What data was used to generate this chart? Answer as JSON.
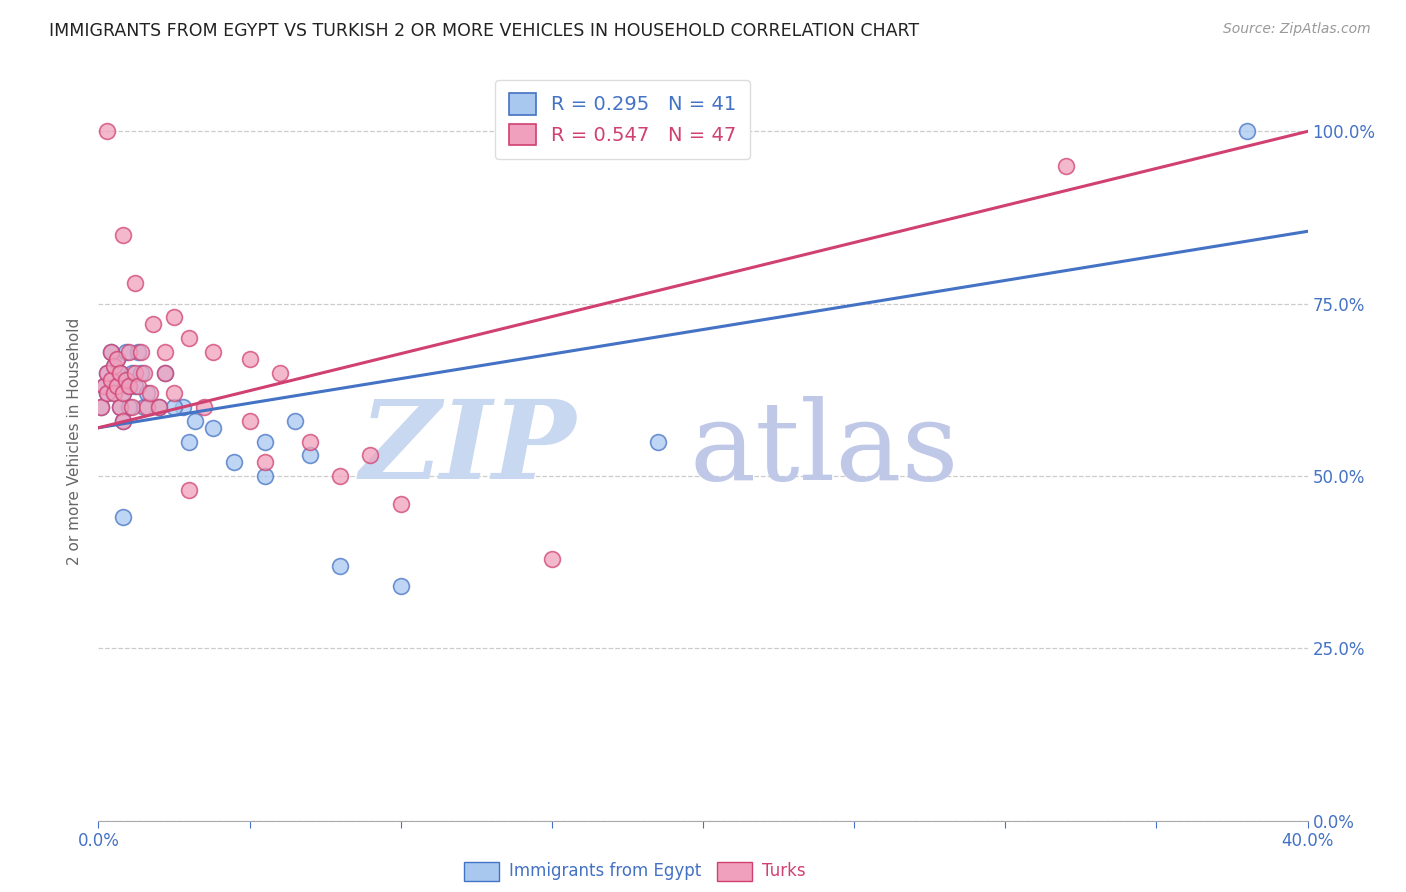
{
  "title": "IMMIGRANTS FROM EGYPT VS TURKISH 2 OR MORE VEHICLES IN HOUSEHOLD CORRELATION CHART",
  "source": "Source: ZipAtlas.com",
  "ylabel": "2 or more Vehicles in Household",
  "legend_label_blue": "Immigrants from Egypt",
  "legend_label_pink": "Turks",
  "R_blue": 0.295,
  "N_blue": 41,
  "R_pink": 0.547,
  "N_pink": 47,
  "x_min": 0.0,
  "x_max": 0.4,
  "y_min": 0.0,
  "y_max": 1.1,
  "yticks": [
    0.0,
    0.25,
    0.5,
    0.75,
    1.0
  ],
  "xticks": [
    0.0,
    0.05,
    0.1,
    0.15,
    0.2,
    0.25,
    0.3,
    0.35,
    0.4
  ],
  "color_blue": "#A8C8F0",
  "color_pink": "#F0A0BC",
  "line_color_blue": "#4472C4",
  "line_color_pink": "#D04070",
  "axis_color": "#4472C4",
  "watermark_zip_color": "#C8D8F0",
  "watermark_atlas_color": "#C0C8E8",
  "blue_trend_x0": 0.0,
  "blue_trend_y0": 0.57,
  "blue_trend_x1": 0.4,
  "blue_trend_y1": 0.855,
  "pink_trend_x0": 0.0,
  "pink_trend_y0": 0.57,
  "pink_trend_x1": 0.4,
  "pink_trend_y1": 1.0,
  "blue_x": [
    0.001,
    0.002,
    0.003,
    0.003,
    0.004,
    0.004,
    0.005,
    0.005,
    0.006,
    0.006,
    0.007,
    0.007,
    0.008,
    0.008,
    0.009,
    0.009,
    0.01,
    0.01,
    0.011,
    0.012,
    0.013,
    0.014,
    0.015,
    0.016,
    0.02,
    0.022,
    0.028,
    0.032,
    0.038,
    0.055,
    0.065,
    0.025,
    0.03,
    0.045,
    0.055,
    0.07,
    0.185,
    0.38,
    0.008,
    0.08,
    0.1
  ],
  "blue_y": [
    0.6,
    0.63,
    0.65,
    0.62,
    0.68,
    0.64,
    0.66,
    0.62,
    0.63,
    0.67,
    0.65,
    0.6,
    0.62,
    0.58,
    0.64,
    0.68,
    0.63,
    0.6,
    0.65,
    0.63,
    0.68,
    0.65,
    0.6,
    0.62,
    0.6,
    0.65,
    0.6,
    0.58,
    0.57,
    0.55,
    0.58,
    0.6,
    0.55,
    0.52,
    0.5,
    0.53,
    0.55,
    1.0,
    0.44,
    0.37,
    0.34
  ],
  "pink_x": [
    0.001,
    0.002,
    0.003,
    0.003,
    0.004,
    0.004,
    0.005,
    0.005,
    0.006,
    0.006,
    0.007,
    0.007,
    0.008,
    0.008,
    0.009,
    0.01,
    0.01,
    0.011,
    0.012,
    0.013,
    0.014,
    0.015,
    0.016,
    0.017,
    0.02,
    0.022,
    0.025,
    0.03,
    0.038,
    0.05,
    0.06,
    0.025,
    0.035,
    0.05,
    0.07,
    0.09,
    0.03,
    0.15,
    0.003,
    0.008,
    0.012,
    0.018,
    0.022,
    0.055,
    0.08,
    0.1,
    0.32
  ],
  "pink_y": [
    0.6,
    0.63,
    0.65,
    0.62,
    0.68,
    0.64,
    0.66,
    0.62,
    0.63,
    0.67,
    0.65,
    0.6,
    0.62,
    0.58,
    0.64,
    0.68,
    0.63,
    0.6,
    0.65,
    0.63,
    0.68,
    0.65,
    0.6,
    0.62,
    0.6,
    0.65,
    0.73,
    0.7,
    0.68,
    0.67,
    0.65,
    0.62,
    0.6,
    0.58,
    0.55,
    0.53,
    0.48,
    0.38,
    1.0,
    0.85,
    0.78,
    0.72,
    0.68,
    0.52,
    0.5,
    0.46,
    0.95
  ]
}
